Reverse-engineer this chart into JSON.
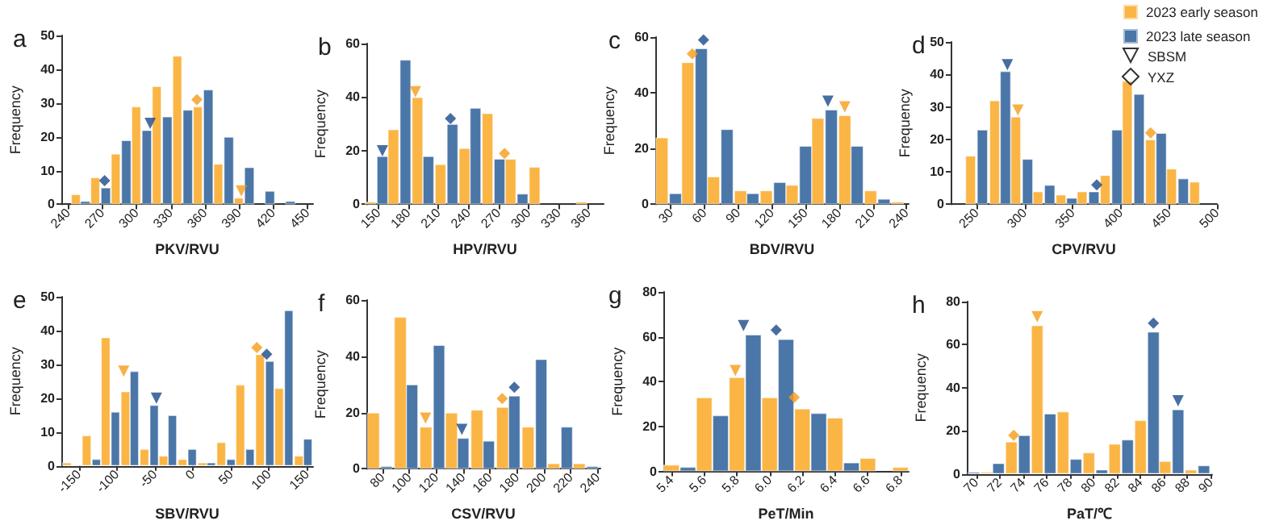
{
  "chart_data": [
    {
      "type": "bar",
      "title": "a",
      "xlabel": "PKV/RVU",
      "ylabel": "Frequency",
      "xlim": [
        234,
        455
      ],
      "xticks": [
        240,
        270,
        300,
        330,
        360,
        390,
        420,
        450
      ],
      "ylim": [
        0,
        50
      ],
      "yticks": [
        0,
        10,
        20,
        30,
        40,
        50
      ],
      "series": [
        {
          "color": "#fbb545",
          "x": [
            247,
            264,
            282,
            300,
            318,
            336,
            354,
            372,
            390
          ],
          "values": [
            3,
            8,
            15,
            29,
            35,
            44,
            29,
            12,
            2
          ]
        },
        {
          "color": "#4a76a8",
          "x": [
            255,
            273,
            291,
            309,
            327,
            345,
            363,
            381,
            399,
            417,
            435
          ],
          "values": [
            1,
            5,
            19,
            22,
            26,
            28,
            34,
            20,
            11,
            4,
            1
          ]
        },
        {
          "type": "scatter",
          "marker": "triangle",
          "x": [
            392,
            312
          ],
          "values": [
            4,
            24
          ],
          "colors": [
            "#f59c1a",
            "#1a4a8a"
          ]
        },
        {
          "type": "scatter",
          "marker": "diamond",
          "x": [
            353,
            272
          ],
          "values": [
            31,
            7
          ],
          "colors": [
            "#f59c1a",
            "#1a4a8a"
          ]
        }
      ]
    },
    {
      "type": "bar",
      "title": "b",
      "xlabel": "HPV/RVU",
      "ylabel": "Frequency",
      "xlim": [
        138,
        375
      ],
      "xticks": [
        150,
        180,
        210,
        240,
        270,
        300,
        330,
        360
      ],
      "ylim": [
        0,
        60
      ],
      "yticks": [
        0,
        20,
        40,
        60
      ],
      "series": [
        {
          "color": "#fbb545",
          "x": [
            142,
            165,
            189,
            212,
            236,
            259,
            282,
            306,
            353
          ],
          "values": [
            1,
            28,
            40,
            15,
            21,
            34,
            17,
            14,
            1
          ]
        },
        {
          "color": "#4a76a8",
          "x": [
            154,
            177,
            200,
            224,
            247,
            271,
            294
          ],
          "values": [
            18,
            54,
            18,
            30,
            36,
            17,
            4
          ]
        },
        {
          "type": "scatter",
          "marker": "triangle",
          "x": [
            187,
            154
          ],
          "values": [
            42,
            20
          ],
          "colors": [
            "#f59c1a",
            "#1a4a8a"
          ]
        },
        {
          "type": "scatter",
          "marker": "diamond",
          "x": [
            276,
            222
          ],
          "values": [
            19,
            32
          ],
          "colors": [
            "#f59c1a",
            "#1a4a8a"
          ]
        }
      ]
    },
    {
      "type": "bar",
      "title": "c",
      "xlabel": "BDV/RVU",
      "ylabel": "Frequency",
      "xlim": [
        16,
        242
      ],
      "xticks": [
        30,
        60,
        90,
        120,
        150,
        180,
        210,
        240
      ],
      "ylim": [
        0,
        60
      ],
      "yticks": [
        0,
        20,
        40,
        60
      ],
      "series": [
        {
          "color": "#fbb545",
          "x": [
            22,
            45,
            68,
            92,
            115,
            138,
            161,
            185,
            208,
            232
          ],
          "values": [
            24,
            51,
            10,
            5,
            5,
            7,
            31,
            32,
            5,
            1
          ]
        },
        {
          "color": "#4a76a8",
          "x": [
            34,
            57,
            80,
            103,
            127,
            150,
            173,
            196,
            220
          ],
          "values": [
            4,
            56,
            27,
            4,
            8,
            21,
            34,
            21,
            2
          ]
        },
        {
          "type": "scatter",
          "marker": "triangle",
          "x": [
            185,
            170
          ],
          "values": [
            35,
            37
          ],
          "colors": [
            "#f59c1a",
            "#1a4a8a"
          ]
        },
        {
          "type": "scatter",
          "marker": "diamond",
          "x": [
            49,
            59
          ],
          "values": [
            54,
            59
          ],
          "colors": [
            "#f59c1a",
            "#1a4a8a"
          ]
        }
      ]
    },
    {
      "type": "bar",
      "title": "d",
      "xlabel": "CPV/RVU",
      "ylabel": "Frequency",
      "legend": "top right",
      "annotations": [
        "SBSM",
        "YXZ"
      ],
      "xlim": [
        223,
        500
      ],
      "xticks": [
        250,
        300,
        350,
        400,
        450,
        500
      ],
      "ylim": [
        0,
        50
      ],
      "yticks": [
        0,
        10,
        20,
        30,
        40,
        50
      ],
      "series": [
        {
          "name": "2023 early season",
          "color": "#fbb545",
          "x": [
            244,
            269,
            291,
            314,
            338,
            360,
            384,
            407,
            431,
            453,
            477
          ],
          "values": [
            15,
            32,
            27,
            4,
            3,
            4,
            9,
            38,
            20,
            11,
            7
          ]
        },
        {
          "name": "2023 late season",
          "color": "#4a76a8",
          "x": [
            256,
            280,
            303,
            326,
            349,
            372,
            396,
            419,
            442,
            465
          ],
          "values": [
            23,
            41,
            14,
            6,
            2,
            4,
            23,
            34,
            22,
            8
          ]
        },
        {
          "type": "scatter",
          "marker": "triangle",
          "x": [
            293,
            282
          ],
          "values": [
            29,
            43
          ],
          "colors": [
            "#f59c1a",
            "#1a4a8a"
          ]
        },
        {
          "type": "scatter",
          "marker": "diamond",
          "x": [
            431,
            375
          ],
          "values": [
            22,
            6
          ],
          "colors": [
            "#f59c1a",
            "#1a4a8a"
          ]
        }
      ]
    },
    {
      "type": "bar",
      "title": "e",
      "xlabel": "SBV/RVU",
      "ylabel": "Frequency",
      "xlim": [
        -173,
        158
      ],
      "xticks": [
        -150,
        -100,
        -50,
        0,
        50,
        100,
        150
      ],
      "ylim": [
        0,
        50
      ],
      "yticks": [
        0,
        10,
        20,
        30,
        40,
        50
      ],
      "series": [
        {
          "color": "#fbb545",
          "x": [
            -166,
            -140,
            -115,
            -89,
            -64,
            -39,
            -14,
            12,
            37,
            62,
            88,
            113,
            139
          ],
          "values": [
            1,
            9,
            38,
            22,
            5,
            3,
            2,
            1,
            7,
            24,
            33,
            23,
            3
          ]
        },
        {
          "color": "#4a76a8",
          "x": [
            -127,
            -102,
            -77,
            -51,
            -27,
            -1,
            24,
            50,
            75,
            101,
            126,
            151
          ],
          "values": [
            2,
            16,
            28,
            18,
            15,
            5,
            1,
            2,
            5,
            31,
            46,
            8
          ]
        },
        {
          "type": "scatter",
          "marker": "triangle",
          "x": [
            -91,
            -48
          ],
          "values": [
            28,
            20
          ],
          "colors": [
            "#f59c1a",
            "#1a4a8a"
          ]
        },
        {
          "type": "scatter",
          "marker": "diamond",
          "x": [
            84,
            97
          ],
          "values": [
            35,
            33
          ],
          "colors": [
            "#f59c1a",
            "#1a4a8a"
          ]
        }
      ]
    },
    {
      "type": "bar",
      "title": "f",
      "xlabel": "CSV/RVU",
      "ylabel": "Frequency",
      "xlim": [
        68,
        242
      ],
      "xticks": [
        80,
        100,
        120,
        140,
        160,
        180,
        200,
        220,
        240
      ],
      "ylim": [
        0,
        60
      ],
      "yticks": [
        0,
        20,
        40,
        60
      ],
      "series": [
        {
          "color": "#fbb545",
          "x": [
            73,
            93,
            112,
            131,
            150,
            169,
            188,
            207,
            226
          ],
          "values": [
            20,
            54,
            15,
            20,
            21,
            22,
            15,
            2,
            2
          ]
        },
        {
          "color": "#4a76a8",
          "x": [
            83,
            102,
            122,
            140,
            159,
            178,
            198,
            217,
            236
          ],
          "values": [
            1,
            30,
            44,
            11,
            10,
            26,
            39,
            15,
            1
          ]
        },
        {
          "type": "scatter",
          "marker": "triangle",
          "x": [
            112,
            139
          ],
          "values": [
            18,
            14
          ],
          "colors": [
            "#f59c1a",
            "#1a4a8a"
          ]
        },
        {
          "type": "scatter",
          "marker": "diamond",
          "x": [
            169,
            178
          ],
          "values": [
            25,
            29
          ],
          "colors": [
            "#f59c1a",
            "#1a4a8a"
          ]
        }
      ]
    },
    {
      "type": "bar",
      "title": "g",
      "xlabel": "PeT/Min",
      "ylabel": "Frequency",
      "xlim": [
        5.35,
        6.85
      ],
      "xticks": [
        5.4,
        5.6,
        5.8,
        {
          "value": 6,
          "label": "6.0"
        },
        6.2,
        6.4,
        6.6,
        6.8
      ],
      "ylim": [
        0,
        80
      ],
      "yticks": [
        0,
        20,
        40,
        60,
        80
      ],
      "series": [
        {
          "color": "#fbb545",
          "x": [
            5.4,
            5.6,
            5.8,
            6.0,
            6.2,
            6.4,
            6.6,
            6.8
          ],
          "values": [
            3,
            33,
            42,
            33,
            28,
            24,
            6,
            2
          ]
        },
        {
          "color": "#4a76a8",
          "x": [
            5.5,
            5.7,
            5.9,
            6.1,
            6.3,
            6.5
          ],
          "values": [
            2,
            25,
            61,
            59,
            26,
            4
          ]
        },
        {
          "type": "scatter",
          "marker": "triangle",
          "x": [
            5.79,
            5.84
          ],
          "values": [
            45,
            65
          ],
          "colors": [
            "#f59c1a",
            "#1a4a8a"
          ]
        },
        {
          "type": "scatter",
          "marker": "diamond",
          "x": [
            6.15,
            6.04
          ],
          "values": [
            33,
            63
          ],
          "colors": [
            "#f59c1a",
            "#1a4a8a"
          ]
        }
      ]
    },
    {
      "type": "bar",
      "title": "h",
      "xlabel": "PaT/℃",
      "ylabel": "Frequency",
      "xlim": [
        69.2,
        90.1
      ],
      "xticks": [
        70,
        72,
        74,
        76,
        78,
        80,
        82,
        84,
        86,
        88,
        90
      ],
      "ylim": [
        0,
        80
      ],
      "yticks": [
        0,
        20,
        40,
        60,
        80
      ],
      "series": [
        {
          "color": "#fbb545",
          "x": [
            70.9,
            73.0,
            75.2,
            77.4,
            79.6,
            81.8,
            84.0,
            86.1,
            88.3
          ],
          "values": [
            1,
            15,
            69,
            29,
            10,
            14,
            25,
            6,
            2
          ]
        },
        {
          "color": "#4a76a8",
          "x": [
            69.8,
            71.9,
            74.1,
            76.3,
            78.5,
            80.7,
            82.9,
            85.1,
            87.2,
            89.4
          ],
          "values": [
            1,
            5,
            18,
            28,
            7,
            2,
            16,
            66,
            30,
            4
          ]
        },
        {
          "type": "scatter",
          "marker": "triangle",
          "x": [
            75.2,
            87.2
          ],
          "values": [
            73,
            34
          ],
          "colors": [
            "#f59c1a",
            "#1a4a8a"
          ]
        },
        {
          "type": "scatter",
          "marker": "diamond",
          "x": [
            73.2,
            85.1
          ],
          "values": [
            18,
            70
          ],
          "colors": [
            "#f59c1a",
            "#1a4a8a"
          ]
        }
      ]
    }
  ]
}
